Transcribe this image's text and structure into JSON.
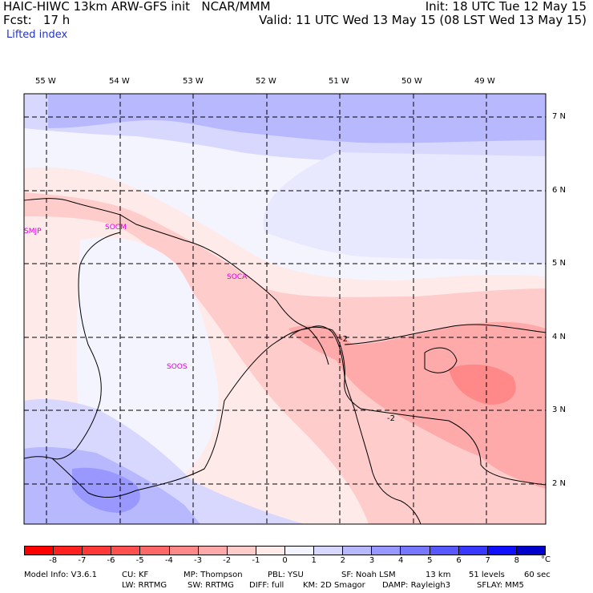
{
  "header": {
    "model": "HAIC-HIWC 13km ARW-GFS init   NCAR/MMM",
    "fcst": "Fcst:   17 h",
    "init": "Init: 18 UTC Tue 12 May 15",
    "valid": "Valid: 11 UTC Wed 13 May 15 (08 LST Wed 13 May 15)",
    "field": "Lifted index"
  },
  "lon_labels": [
    "55 W",
    "54 W",
    "53 W",
    "52 W",
    "51 W",
    "50 W",
    "49 W"
  ],
  "lat_labels": [
    "7 N",
    "6 N",
    "5 N",
    "4 N",
    "3 N",
    "2 N"
  ],
  "stations": [
    "SMJP",
    "SOCM",
    "SOCA",
    "SOOS"
  ],
  "contour_labels": [
    "-2",
    "-2"
  ],
  "colorbar": {
    "ticks": [
      "-8",
      "-7",
      "-6",
      "-5",
      "-4",
      "-3",
      "-2",
      "-1",
      "0",
      "1",
      "2",
      "3",
      "4",
      "5",
      "6",
      "7",
      "8"
    ],
    "unit": "°C",
    "colors": [
      "#ff0000",
      "#ff2020",
      "#ff3838",
      "#ff5050",
      "#ff6868",
      "#ff8888",
      "#ffaaaa",
      "#ffcccc",
      "#ffeaea",
      "#f4f4ff",
      "#d8d8ff",
      "#b8b8ff",
      "#9898ff",
      "#7878ff",
      "#5858ff",
      "#3838ff",
      "#1010ff",
      "#0000cc"
    ]
  },
  "footer": {
    "line1": [
      "Model Info: V3.6.1",
      "CU: KF",
      "MP: Thompson",
      "PBL: YSU",
      "SF: Noah LSM",
      "13 km",
      "51 levels",
      "60 sec"
    ],
    "line2": [
      "LW: RRTMG",
      "SW: RRTMG",
      "DIFF: full",
      "KM: 2D Smagor",
      "DAMP: Rayleigh3",
      "SFLAY: MM5"
    ]
  },
  "colors": {
    "station": "#dd00dd",
    "subtitle": "#2233cc"
  }
}
